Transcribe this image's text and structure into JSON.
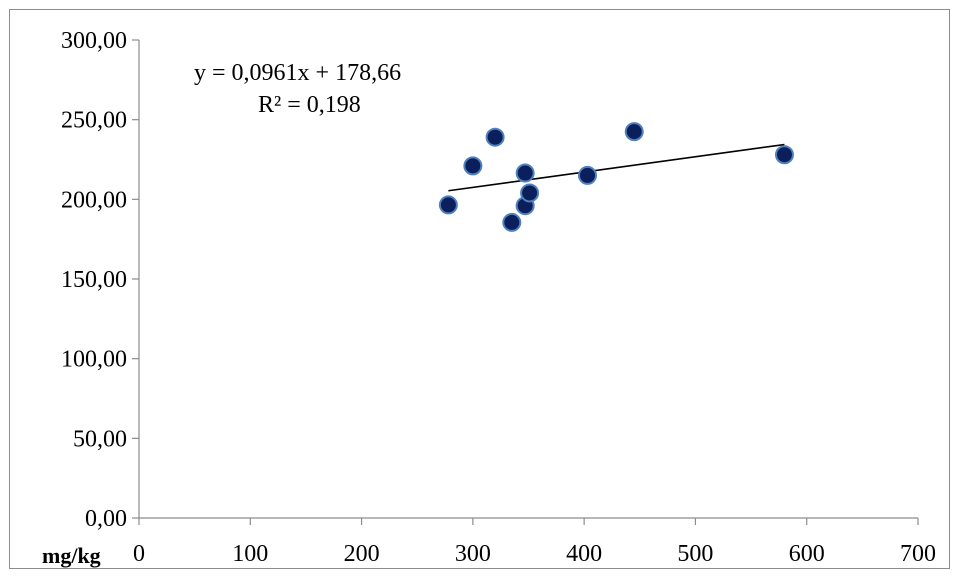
{
  "chart_data": {
    "type": "scatter",
    "xlabel": "mg/kg",
    "ylabel": "",
    "xlim": [
      0,
      700
    ],
    "ylim": [
      0,
      300
    ],
    "x_ticks": [
      0,
      100,
      200,
      300,
      400,
      500,
      600,
      700
    ],
    "x_tick_labels": [
      "0",
      "100",
      "200",
      "300",
      "400",
      "500",
      "600",
      "700"
    ],
    "y_ticks": [
      0,
      50,
      100,
      150,
      200,
      250,
      300
    ],
    "y_tick_labels": [
      "0,00",
      "50,00",
      "100,00",
      "150,00",
      "200,00",
      "250,00",
      "300,00"
    ],
    "grid": false,
    "series": [
      {
        "points": [
          {
            "x": 278,
            "y": 196.5
          },
          {
            "x": 300,
            "y": 221
          },
          {
            "x": 320,
            "y": 239
          },
          {
            "x": 335,
            "y": 185.5
          },
          {
            "x": 347,
            "y": 196
          },
          {
            "x": 347,
            "y": 216.5
          },
          {
            "x": 351,
            "y": 204
          },
          {
            "x": 403,
            "y": 215
          },
          {
            "x": 445,
            "y": 242.5
          },
          {
            "x": 580,
            "y": 228
          }
        ],
        "color": "#0b1f5c",
        "edge_color": "#4f81bd"
      }
    ],
    "trendline": {
      "type": "linear",
      "slope": 0.0961,
      "intercept": 178.66,
      "x_range": [
        278,
        580
      ],
      "color": "#000000"
    },
    "annotations": {
      "equation": "y = 0,0961x + 178,66",
      "r_squared": "R² = 0,198"
    }
  }
}
